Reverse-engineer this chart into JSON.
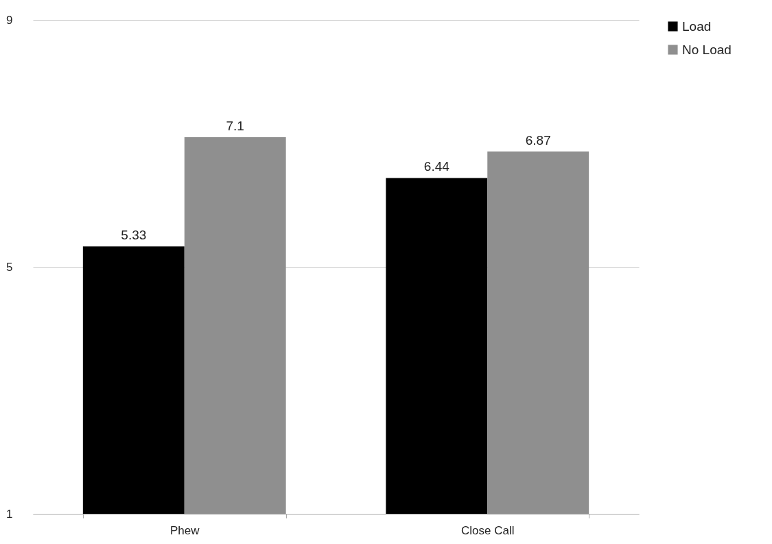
{
  "chart_data": {
    "type": "bar",
    "categories": [
      "Phew",
      "Close Call"
    ],
    "series": [
      {
        "name": "Load",
        "color": "#000000",
        "values": [
          5.33,
          6.44
        ]
      },
      {
        "name": "No Load",
        "color": "#8f8f8f",
        "values": [
          7.1,
          6.87
        ]
      }
    ],
    "ylim": [
      1,
      9
    ],
    "yticks": [
      1,
      5,
      9
    ],
    "grid": "y",
    "legend": "top right",
    "data_labels": true
  }
}
